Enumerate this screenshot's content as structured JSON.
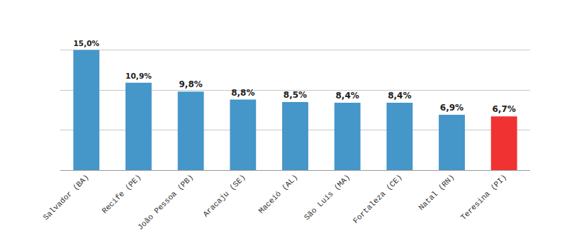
{
  "chart_data": {
    "type": "bar",
    "categories": [
      "Salvador (BA)",
      "Recife (PE)",
      "João Pessoa (PB)",
      "Aracaju (SE)",
      "Maceió (AL)",
      "São Luís (MA)",
      "Fortaleza (CE)",
      "Natal (RN)",
      "Teresina (PI)"
    ],
    "values": [
      15.0,
      10.9,
      9.8,
      8.8,
      8.5,
      8.4,
      8.4,
      6.9,
      6.7
    ],
    "value_labels": [
      "15,0%",
      "10,9%",
      "9,8%",
      "8,8%",
      "8,5%",
      "8,4%",
      "8,4%",
      "6,9%",
      "6,7%"
    ],
    "colors": [
      "#4596c9",
      "#4596c9",
      "#4596c9",
      "#4596c9",
      "#4596c9",
      "#4596c9",
      "#4596c9",
      "#4596c9",
      "#f03232"
    ],
    "ylim": [
      0,
      20
    ],
    "yticks": [
      0,
      5,
      10,
      15,
      20
    ],
    "grid": true,
    "data_labels": true,
    "tick_labels": "x"
  }
}
